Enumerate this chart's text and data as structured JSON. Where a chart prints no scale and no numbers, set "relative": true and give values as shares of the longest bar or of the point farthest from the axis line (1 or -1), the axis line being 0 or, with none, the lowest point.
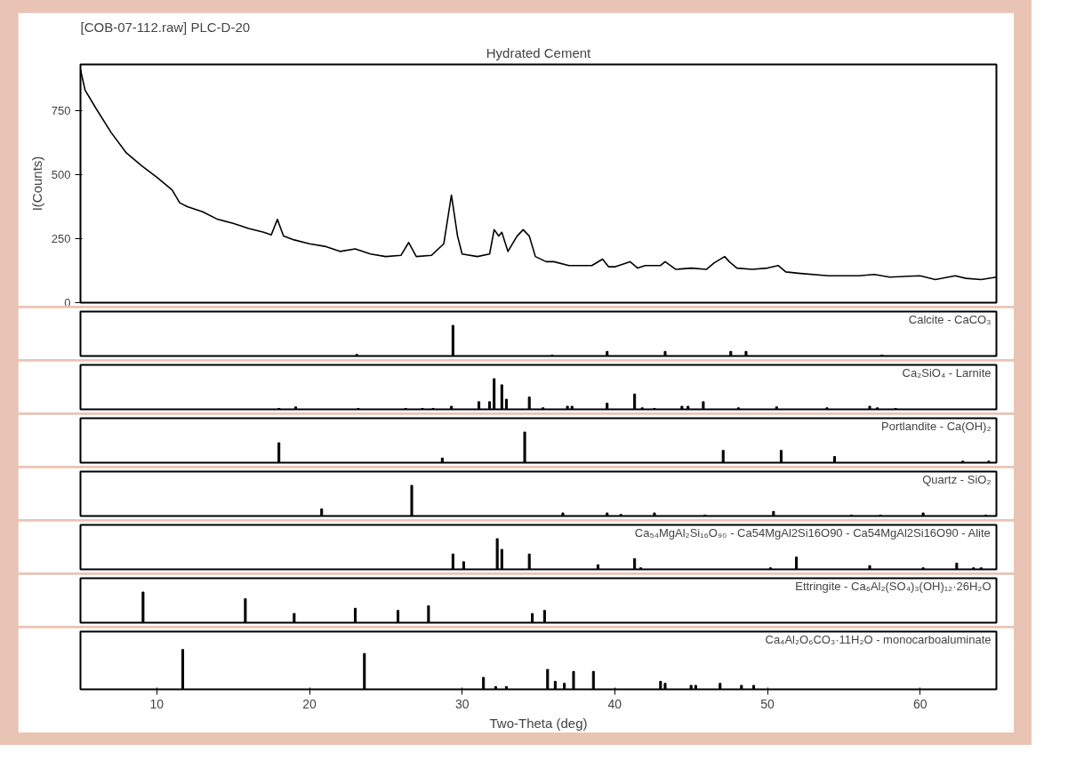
{
  "chart_data": [
    {
      "type": "line",
      "title": "[COB-07-112.raw] PLC-D-20",
      "subtitle": "Hydrated Cement",
      "ylabel": "I(Counts)",
      "xlim": [
        5,
        65
      ],
      "ylim": [
        0,
        930
      ],
      "yticks": [
        0,
        250,
        500,
        750
      ],
      "tick_labels": "y",
      "grid": false,
      "marker": "none",
      "line_style": "solid",
      "series": [
        {
          "color": "#000000",
          "x": [
            5,
            5.3,
            6,
            7,
            8,
            9,
            10,
            11,
            11.5,
            12,
            13,
            14,
            15,
            16,
            17,
            17.5,
            17.9,
            18.3,
            19,
            20,
            21,
            22,
            23,
            24,
            25,
            26,
            26.5,
            27,
            28,
            28.8,
            29.3,
            29.7,
            30,
            31,
            31.8,
            32.1,
            32.4,
            32.6,
            33,
            33.6,
            34,
            34.4,
            34.8,
            35.5,
            36,
            37,
            38,
            38.5,
            39.2,
            39.6,
            40,
            41,
            41.5,
            42,
            43,
            43.3,
            44,
            45,
            46,
            46.5,
            47.2,
            47.5,
            48,
            49,
            50,
            50.7,
            51.2,
            52,
            54,
            56,
            57,
            58,
            60,
            61,
            62.3,
            63,
            64,
            65
          ],
          "values": [
            910,
            830,
            760,
            665,
            585,
            535,
            490,
            440,
            390,
            375,
            355,
            325,
            310,
            290,
            275,
            265,
            325,
            260,
            245,
            230,
            220,
            200,
            210,
            190,
            180,
            185,
            235,
            180,
            185,
            230,
            420,
            260,
            190,
            180,
            190,
            285,
            260,
            275,
            200,
            260,
            285,
            260,
            180,
            160,
            160,
            145,
            145,
            145,
            170,
            140,
            140,
            160,
            135,
            145,
            145,
            160,
            130,
            135,
            130,
            155,
            180,
            160,
            135,
            130,
            135,
            145,
            120,
            115,
            105,
            105,
            110,
            100,
            105,
            90,
            105,
            95,
            90,
            100
          ]
        }
      ]
    },
    {
      "type": "bar",
      "title": "Calcite - CaCO₃",
      "relative": true,
      "xlim": [
        5,
        65
      ],
      "tick_labels": false,
      "grid": false,
      "series": [
        {
          "color": "#000000",
          "x": [
            23.1,
            29.4,
            35.9,
            39.5,
            43.3,
            47.6,
            48.6,
            57.5
          ],
          "values": [
            0.05,
            1,
            0.03,
            0.15,
            0.15,
            0.15,
            0.15,
            0.03
          ]
        }
      ]
    },
    {
      "type": "bar",
      "title": "Ca₂SiO₄ - Larnite",
      "relative": true,
      "xlim": [
        5,
        65
      ],
      "tick_labels": false,
      "grid": false,
      "series": [
        {
          "color": "#000000",
          "x": [
            18.0,
            19.1,
            23.2,
            26.3,
            27.4,
            28.1,
            29.3,
            31.1,
            31.8,
            32.1,
            32.6,
            32.9,
            34.4,
            35.3,
            36.9,
            37.2,
            39.5,
            41.3,
            41.8,
            42.6,
            44.4,
            44.8,
            45.8,
            48.1,
            50.6,
            53.9,
            56.7,
            57.2,
            58.4
          ],
          "values": [
            0.03,
            0.08,
            0.03,
            0.03,
            0.03,
            0.03,
            0.1,
            0.25,
            0.25,
            1,
            0.8,
            0.33,
            0.4,
            0.05,
            0.1,
            0.1,
            0.2,
            0.5,
            0.05,
            0.03,
            0.1,
            0.1,
            0.25,
            0.05,
            0.08,
            0.05,
            0.1,
            0.05,
            0.03
          ]
        }
      ]
    },
    {
      "type": "bar",
      "title": "Portlandite - Ca(OH)₂",
      "relative": true,
      "xlim": [
        5,
        65
      ],
      "tick_labels": false,
      "grid": false,
      "series": [
        {
          "color": "#000000",
          "x": [
            18.0,
            28.7,
            34.1,
            47.1,
            50.9,
            54.4,
            62.8,
            64.5
          ],
          "values": [
            0.65,
            0.15,
            1,
            0.4,
            0.4,
            0.2,
            0.05,
            0.05
          ]
        }
      ]
    },
    {
      "type": "bar",
      "title": "Quartz - SiO₂",
      "relative": true,
      "xlim": [
        5,
        65
      ],
      "tick_labels": false,
      "grid": false,
      "series": [
        {
          "color": "#000000",
          "x": [
            20.8,
            26.7,
            36.6,
            39.5,
            40.4,
            42.6,
            45.9,
            50.4,
            55.5,
            57.4,
            60.2,
            64.3
          ],
          "values": [
            0.23,
            1,
            0.1,
            0.1,
            0.05,
            0.1,
            0.03,
            0.15,
            0.03,
            0.03,
            0.1,
            0.03
          ]
        }
      ]
    },
    {
      "type": "bar",
      "title": "Ca₅₄MgAl₂Si₁₆O₉₀ - Ca54MgAl2Si16O90 - Ca54MgAl2Si16O90 - Alite",
      "relative": true,
      "xlim": [
        5,
        65
      ],
      "tick_labels": false,
      "grid": false,
      "series": [
        {
          "color": "#000000",
          "x": [
            29.4,
            30.1,
            32.3,
            32.6,
            34.4,
            38.9,
            41.3,
            41.7,
            50.2,
            51.9,
            56.7,
            60.2,
            62.4,
            63.5,
            64.0
          ],
          "values": [
            0.5,
            0.25,
            1,
            0.65,
            0.5,
            0.15,
            0.35,
            0.05,
            0.05,
            0.4,
            0.12,
            0.05,
            0.2,
            0.05,
            0.05
          ]
        }
      ]
    },
    {
      "type": "bar",
      "title": "Ettringite - Ca₆Al₂(SO₄)₃(OH)₁₂·26H₂O",
      "relative": true,
      "xlim": [
        5,
        65
      ],
      "tick_labels": false,
      "grid": false,
      "series": [
        {
          "color": "#000000",
          "x": [
            9.1,
            15.8,
            19.0,
            23.0,
            25.8,
            27.8,
            34.6,
            35.4
          ],
          "values": [
            1,
            0.78,
            0.3,
            0.47,
            0.4,
            0.55,
            0.3,
            0.4
          ]
        }
      ]
    },
    {
      "type": "bar",
      "title": "Ca₄Al₂O₆CO₃·11H₂O - monocarboaluminate",
      "xlabel": "Two-Theta (deg)",
      "relative": true,
      "xlim": [
        5,
        65
      ],
      "xticks": [
        10,
        20,
        30,
        40,
        50,
        60
      ],
      "tick_labels": "x",
      "grid": false,
      "series": [
        {
          "color": "#000000",
          "x": [
            11.7,
            23.6,
            31.4,
            32.2,
            32.9,
            35.6,
            36.1,
            36.7,
            37.3,
            38.6,
            43.0,
            43.3,
            45.0,
            45.3,
            46.9,
            48.3,
            49.1
          ],
          "values": [
            1,
            0.9,
            0.3,
            0.07,
            0.07,
            0.5,
            0.2,
            0.15,
            0.45,
            0.45,
            0.2,
            0.15,
            0.1,
            0.1,
            0.15,
            0.1,
            0.1
          ]
        }
      ]
    }
  ]
}
